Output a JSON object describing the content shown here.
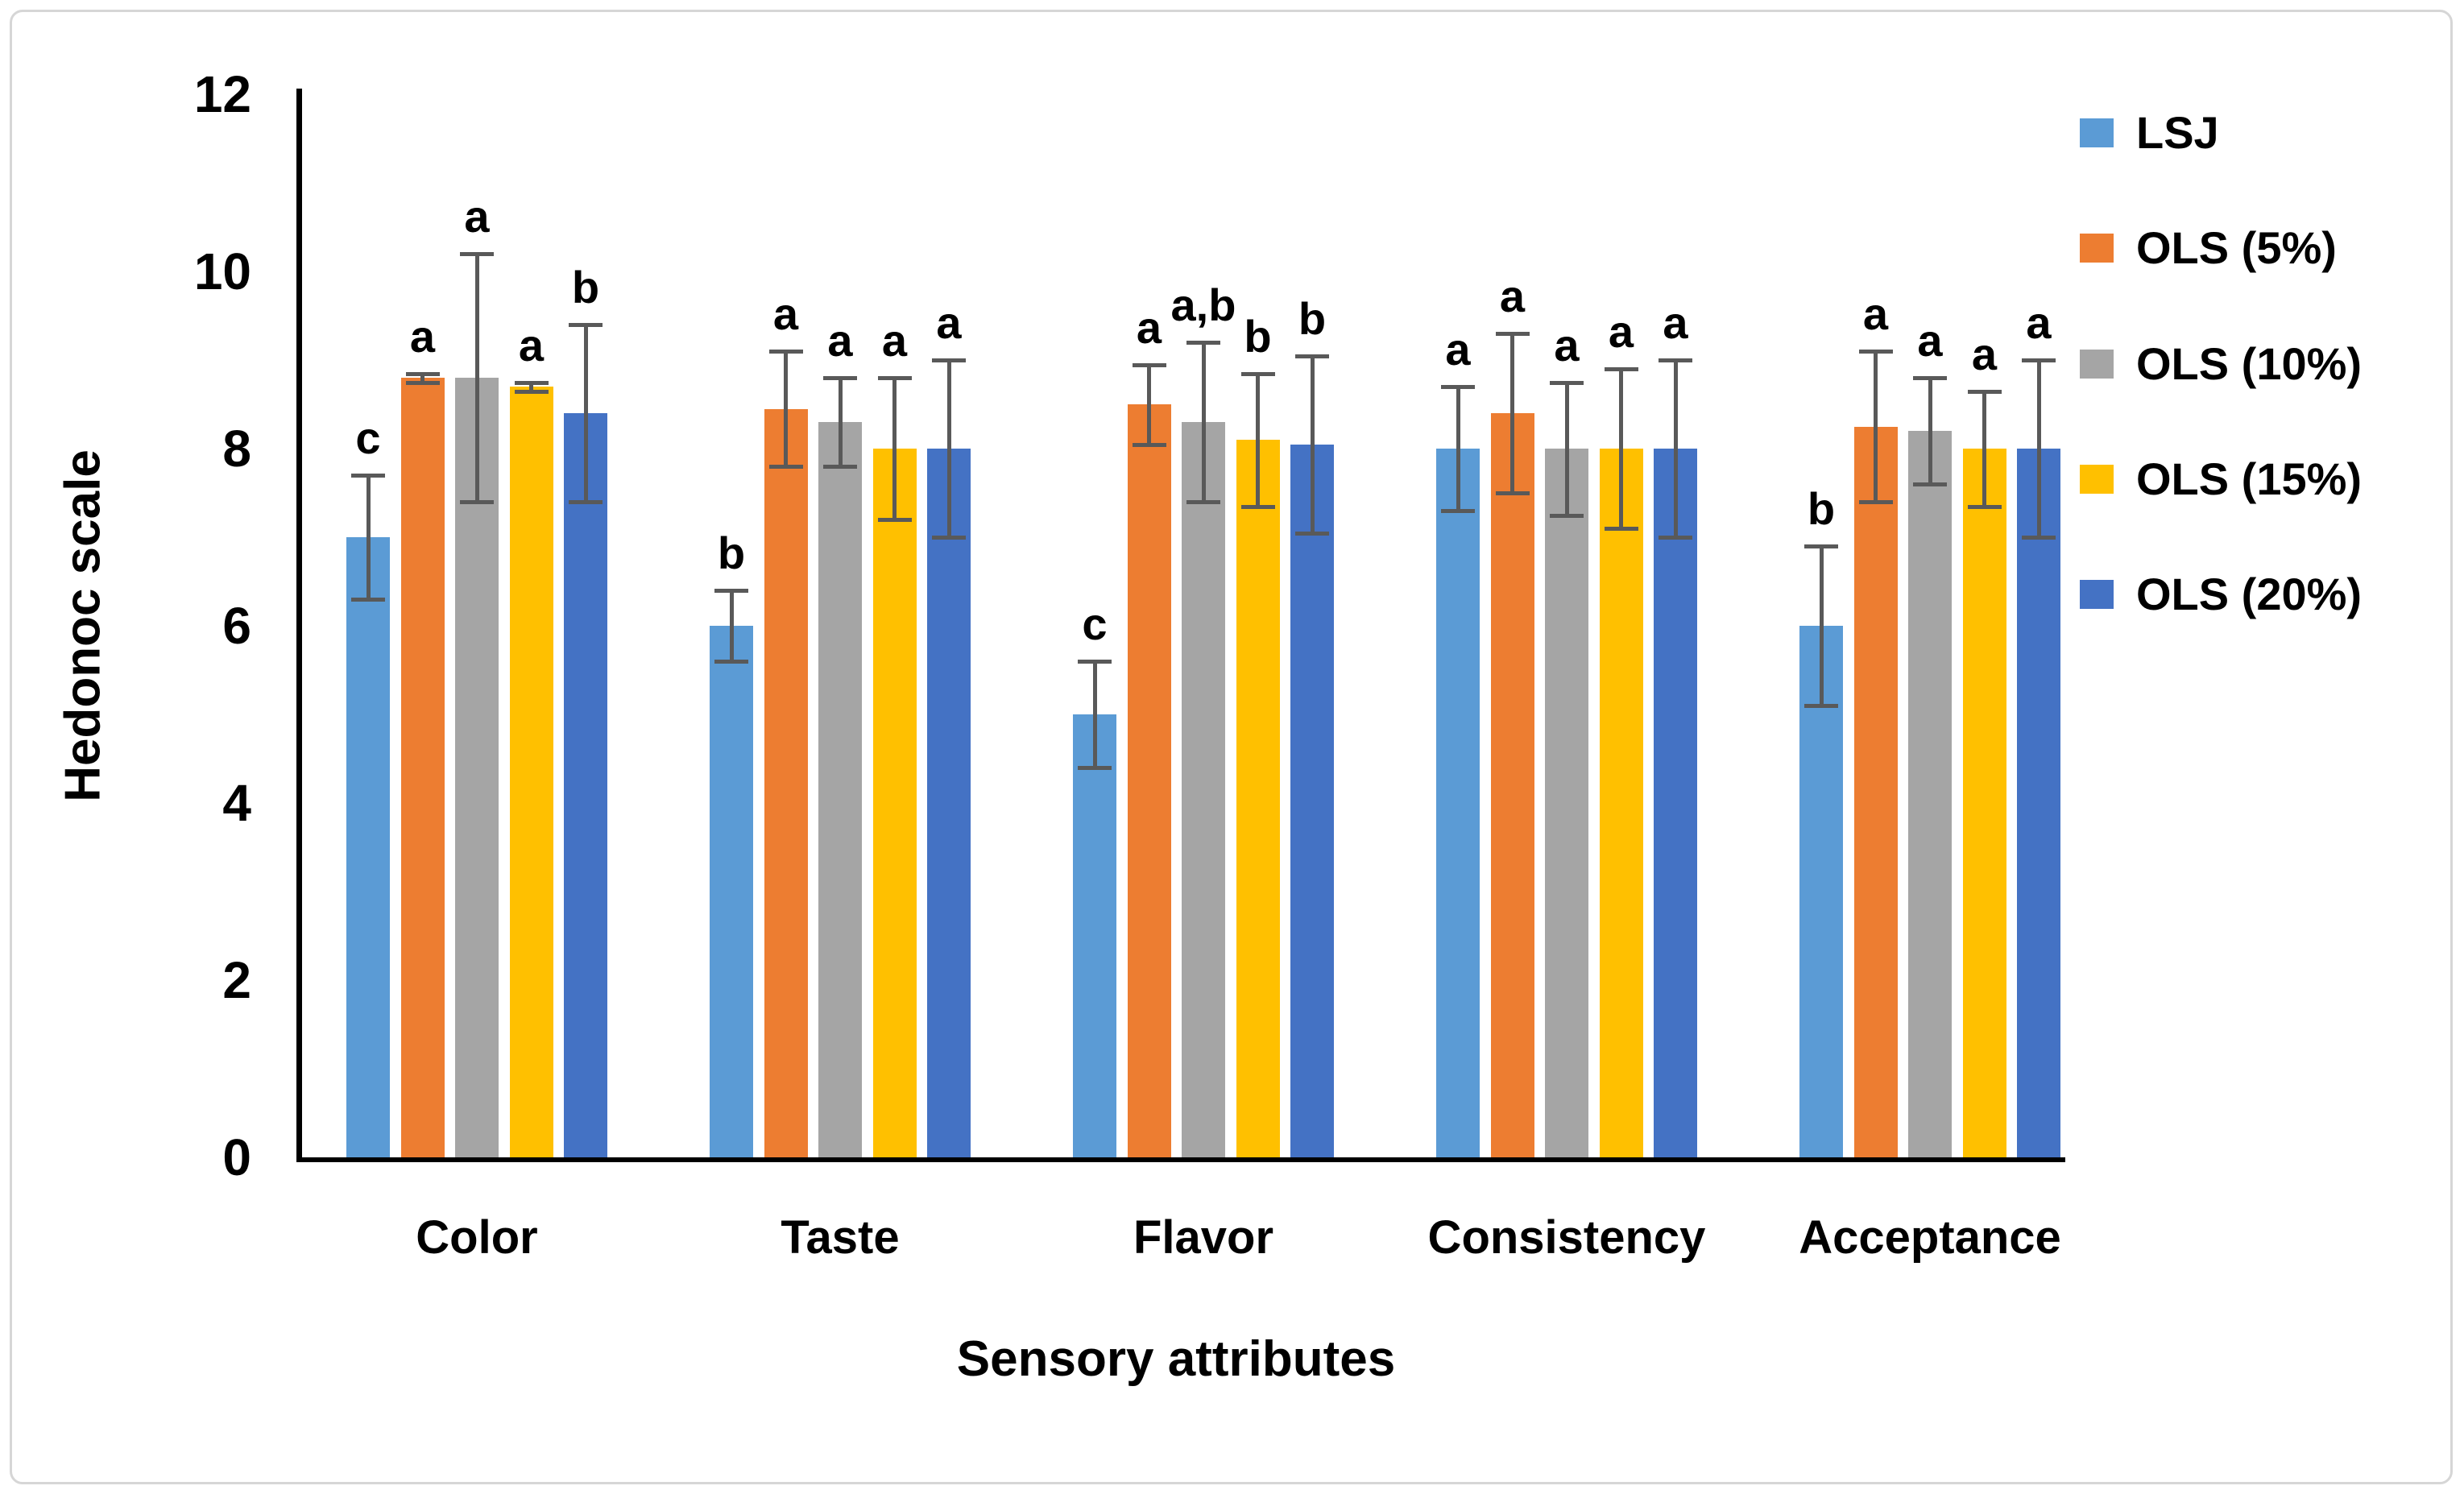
{
  "chart_data": {
    "type": "bar",
    "title": "",
    "xlabel": "Sensory attributes",
    "ylabel": "Hedonoc scale",
    "ylim": [
      0,
      12
    ],
    "yticks": [
      0,
      2,
      4,
      6,
      8,
      10,
      12
    ],
    "grid": false,
    "legend_position": "upper-right",
    "error_bar_color": "#595959",
    "categories": [
      "Color",
      "Taste",
      "Flavor",
      "Consistency",
      "Acceptance"
    ],
    "series": [
      {
        "name": "LSJ",
        "color": "#5B9BD5",
        "values": [
          7.0,
          6.0,
          5.0,
          8.0,
          6.0
        ],
        "errors": [
          0.7,
          0.4,
          0.6,
          0.7,
          0.9
        ],
        "sig_letters": [
          "c",
          "b",
          "c",
          "a",
          "b"
        ]
      },
      {
        "name": "OLS (5%)",
        "color": "#ED7D31",
        "values": [
          8.8,
          8.45,
          8.5,
          8.4,
          8.25
        ],
        "errors": [
          0.05,
          0.65,
          0.45,
          0.9,
          0.85
        ],
        "sig_letters": [
          "a",
          "a",
          "a",
          "a",
          "a"
        ]
      },
      {
        "name": "OLS (10%)",
        "color": "#A5A5A5",
        "values": [
          8.8,
          8.3,
          8.3,
          8.0,
          8.2
        ],
        "errors": [
          1.4,
          0.5,
          0.9,
          0.75,
          0.6
        ],
        "sig_letters": [
          "a",
          "a",
          "a,b",
          "a",
          "a"
        ]
      },
      {
        "name": "OLS (15%)",
        "color": "#FFC000",
        "values": [
          8.7,
          8.0,
          8.1,
          8.0,
          8.0
        ],
        "errors": [
          0.05,
          0.8,
          0.75,
          0.9,
          0.65
        ],
        "sig_letters": [
          "a",
          "a",
          "b",
          "a",
          "a"
        ]
      },
      {
        "name": "OLS (20%)",
        "color": "#4472C4",
        "values": [
          8.4,
          8.0,
          8.05,
          8.0,
          8.0
        ],
        "errors": [
          1.0,
          1.0,
          1.0,
          1.0,
          1.0
        ],
        "sig_letters": [
          "b",
          "a",
          "b",
          "a",
          "a"
        ]
      }
    ]
  }
}
